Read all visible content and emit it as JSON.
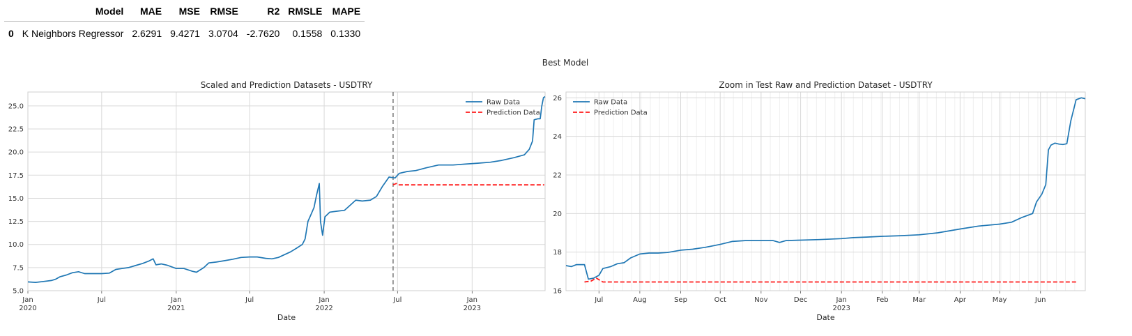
{
  "metrics_table": {
    "headers": [
      "",
      "Model",
      "MAE",
      "MSE",
      "RMSE",
      "R2",
      "RMSLE",
      "MAPE"
    ],
    "rows": [
      [
        "0",
        "K Neighbors Regressor",
        "2.6291",
        "9.4271",
        "3.0704",
        "-2.7620",
        "0.1558",
        "0.1330"
      ]
    ]
  },
  "suptitle": "Best Model",
  "chart_data": [
    {
      "type": "line",
      "title": "Scaled and Prediction Datasets - USDTRY",
      "xlabel": "Date",
      "ylabel": "",
      "xlim": [
        "2020-01-01",
        "2023-06-30"
      ],
      "ylim": [
        5.0,
        26.5
      ],
      "yticks": [
        5.0,
        7.5,
        10.0,
        12.5,
        15.0,
        17.5,
        20.0,
        22.5,
        25.0
      ],
      "ytick_labels": [
        "5.0",
        "7.5",
        "10.0",
        "12.5",
        "15.0",
        "17.5",
        "20.0",
        "22.5",
        "25.0"
      ],
      "xticks": [
        {
          "date": "2020-01-01",
          "label": "Jan",
          "sub": "2020"
        },
        {
          "date": "2020-07-01",
          "label": "Jul",
          "sub": ""
        },
        {
          "date": "2021-01-01",
          "label": "Jan",
          "sub": "2021"
        },
        {
          "date": "2021-07-01",
          "label": "Jul",
          "sub": ""
        },
        {
          "date": "2022-01-01",
          "label": "Jan",
          "sub": "2022"
        },
        {
          "date": "2022-07-01",
          "label": "Jul",
          "sub": ""
        },
        {
          "date": "2023-01-01",
          "label": "Jan",
          "sub": "2023"
        }
      ],
      "grid": true,
      "legend": "upper right",
      "split_line_date": "2022-06-20",
      "series": [
        {
          "name": "Raw Data",
          "color": "#1f77b4",
          "style": "solid",
          "points": [
            [
              "2020-01-01",
              5.95
            ],
            [
              "2020-01-20",
              5.9
            ],
            [
              "2020-02-10",
              6.0
            ],
            [
              "2020-02-28",
              6.1
            ],
            [
              "2020-03-10",
              6.25
            ],
            [
              "2020-03-20",
              6.5
            ],
            [
              "2020-04-05",
              6.7
            ],
            [
              "2020-04-20",
              6.95
            ],
            [
              "2020-05-05",
              7.05
            ],
            [
              "2020-05-20",
              6.85
            ],
            [
              "2020-06-05",
              6.85
            ],
            [
              "2020-07-01",
              6.85
            ],
            [
              "2020-07-20",
              6.9
            ],
            [
              "2020-08-05",
              7.3
            ],
            [
              "2020-08-20",
              7.4
            ],
            [
              "2020-09-05",
              7.5
            ],
            [
              "2020-09-25",
              7.75
            ],
            [
              "2020-10-10",
              7.95
            ],
            [
              "2020-10-25",
              8.2
            ],
            [
              "2020-11-05",
              8.45
            ],
            [
              "2020-11-12",
              7.8
            ],
            [
              "2020-11-25",
              7.9
            ],
            [
              "2020-12-10",
              7.75
            ],
            [
              "2021-01-01",
              7.4
            ],
            [
              "2021-01-20",
              7.4
            ],
            [
              "2021-02-10",
              7.1
            ],
            [
              "2021-02-20",
              7.0
            ],
            [
              "2021-03-10",
              7.5
            ],
            [
              "2021-03-22",
              8.0
            ],
            [
              "2021-04-10",
              8.1
            ],
            [
              "2021-05-01",
              8.25
            ],
            [
              "2021-05-20",
              8.4
            ],
            [
              "2021-06-10",
              8.6
            ],
            [
              "2021-07-01",
              8.65
            ],
            [
              "2021-07-20",
              8.65
            ],
            [
              "2021-08-10",
              8.5
            ],
            [
              "2021-08-25",
              8.45
            ],
            [
              "2021-09-10",
              8.6
            ],
            [
              "2021-09-25",
              8.9
            ],
            [
              "2021-10-10",
              9.2
            ],
            [
              "2021-10-25",
              9.6
            ],
            [
              "2021-11-08",
              10.0
            ],
            [
              "2021-11-15",
              10.6
            ],
            [
              "2021-11-22",
              12.5
            ],
            [
              "2021-11-30",
              13.3
            ],
            [
              "2021-12-07",
              14.0
            ],
            [
              "2021-12-13",
              15.3
            ],
            [
              "2021-12-20",
              16.6
            ],
            [
              "2021-12-23",
              12.5
            ],
            [
              "2021-12-28",
              11.0
            ],
            [
              "2022-01-03",
              13.0
            ],
            [
              "2022-01-15",
              13.5
            ],
            [
              "2022-02-01",
              13.6
            ],
            [
              "2022-02-20",
              13.7
            ],
            [
              "2022-03-05",
              14.2
            ],
            [
              "2022-03-20",
              14.8
            ],
            [
              "2022-04-05",
              14.7
            ],
            [
              "2022-04-25",
              14.8
            ],
            [
              "2022-05-10",
              15.2
            ],
            [
              "2022-05-25",
              16.3
            ],
            [
              "2022-06-10",
              17.3
            ],
            [
              "2022-06-25",
              17.2
            ],
            [
              "2022-07-05",
              17.7
            ],
            [
              "2022-07-25",
              17.9
            ],
            [
              "2022-08-15",
              18.0
            ],
            [
              "2022-09-10",
              18.3
            ],
            [
              "2022-10-10",
              18.6
            ],
            [
              "2022-11-15",
              18.6
            ],
            [
              "2022-12-15",
              18.7
            ],
            [
              "2023-01-15",
              18.8
            ],
            [
              "2023-02-15",
              18.9
            ],
            [
              "2023-03-15",
              19.1
            ],
            [
              "2023-04-15",
              19.4
            ],
            [
              "2023-05-10",
              19.7
            ],
            [
              "2023-05-22",
              20.3
            ],
            [
              "2023-05-30",
              21.2
            ],
            [
              "2023-06-03",
              23.5
            ],
            [
              "2023-06-12",
              23.6
            ],
            [
              "2023-06-18",
              23.6
            ],
            [
              "2023-06-22",
              25.0
            ],
            [
              "2023-06-26",
              25.9
            ],
            [
              "2023-06-30",
              26.0
            ]
          ]
        },
        {
          "name": "Prediction Data",
          "color": "#ff1a1a",
          "style": "dashed",
          "points": [
            [
              "2022-06-20",
              16.45
            ],
            [
              "2022-06-28",
              16.6
            ],
            [
              "2022-07-03",
              16.45
            ],
            [
              "2023-06-28",
              16.45
            ]
          ]
        }
      ]
    },
    {
      "type": "line",
      "title": "Zoom in Test Raw and Prediction Dataset - USDTRY",
      "xlabel": "Date",
      "ylabel": "",
      "xlim": [
        "2022-06-06",
        "2023-07-05"
      ],
      "ylim": [
        16.0,
        26.3
      ],
      "yticks": [
        16,
        18,
        20,
        22,
        24,
        26
      ],
      "ytick_labels": [
        "16",
        "18",
        "20",
        "22",
        "24",
        "26"
      ],
      "xticks": [
        {
          "date": "2022-07-01",
          "label": "Jul",
          "sub": ""
        },
        {
          "date": "2022-08-01",
          "label": "Aug",
          "sub": ""
        },
        {
          "date": "2022-09-01",
          "label": "Sep",
          "sub": ""
        },
        {
          "date": "2022-10-01",
          "label": "Oct",
          "sub": ""
        },
        {
          "date": "2022-11-01",
          "label": "Nov",
          "sub": ""
        },
        {
          "date": "2022-12-01",
          "label": "Dec",
          "sub": ""
        },
        {
          "date": "2023-01-01",
          "label": "Jan",
          "sub": "2023"
        },
        {
          "date": "2023-02-01",
          "label": "Feb",
          "sub": ""
        },
        {
          "date": "2023-03-01",
          "label": "Mar",
          "sub": ""
        },
        {
          "date": "2023-04-01",
          "label": "Apr",
          "sub": ""
        },
        {
          "date": "2023-05-01",
          "label": "May",
          "sub": ""
        },
        {
          "date": "2023-06-01",
          "label": "Jun",
          "sub": ""
        }
      ],
      "minor_xticks": [
        "2022-06-14",
        "2022-06-21",
        "2022-06-28",
        "2022-07-05",
        "2022-07-12",
        "2022-07-19",
        "2022-07-26",
        "2022-08-02",
        "2022-08-09",
        "2022-08-16",
        "2022-08-23",
        "2022-08-30",
        "2022-09-06",
        "2022-09-13",
        "2022-09-20",
        "2022-09-27",
        "2022-10-04",
        "2022-10-11",
        "2022-10-18",
        "2022-10-25",
        "2022-11-01",
        "2022-11-08",
        "2022-11-15",
        "2022-11-22",
        "2022-11-29",
        "2022-12-06",
        "2022-12-13",
        "2022-12-20",
        "2022-12-27",
        "2023-01-03",
        "2023-01-10",
        "2023-01-17",
        "2023-01-24",
        "2023-01-31",
        "2023-02-07",
        "2023-02-14",
        "2023-02-21",
        "2023-02-28",
        "2023-03-07",
        "2023-03-14",
        "2023-03-21",
        "2023-03-28",
        "2023-04-04",
        "2023-04-11",
        "2023-04-18",
        "2023-04-25",
        "2023-05-02",
        "2023-05-09",
        "2023-05-16",
        "2023-05-23",
        "2023-05-30",
        "2023-06-06",
        "2023-06-13",
        "2023-06-20",
        "2023-06-27"
      ],
      "grid": true,
      "legend": "upper left",
      "series": [
        {
          "name": "Raw Data",
          "color": "#1f77b4",
          "style": "solid",
          "points": [
            [
              "2022-06-06",
              17.3
            ],
            [
              "2022-06-10",
              17.25
            ],
            [
              "2022-06-14",
              17.35
            ],
            [
              "2022-06-20",
              17.35
            ],
            [
              "2022-06-23",
              16.6
            ],
            [
              "2022-06-27",
              16.65
            ],
            [
              "2022-07-01",
              16.8
            ],
            [
              "2022-07-04",
              17.15
            ],
            [
              "2022-07-10",
              17.25
            ],
            [
              "2022-07-15",
              17.4
            ],
            [
              "2022-07-20",
              17.45
            ],
            [
              "2022-07-25",
              17.7
            ],
            [
              "2022-08-01",
              17.9
            ],
            [
              "2022-08-08",
              17.95
            ],
            [
              "2022-08-15",
              17.95
            ],
            [
              "2022-08-22",
              17.98
            ],
            [
              "2022-09-01",
              18.1
            ],
            [
              "2022-09-10",
              18.15
            ],
            [
              "2022-09-20",
              18.25
            ],
            [
              "2022-10-01",
              18.4
            ],
            [
              "2022-10-10",
              18.55
            ],
            [
              "2022-10-20",
              18.6
            ],
            [
              "2022-11-01",
              18.6
            ],
            [
              "2022-11-10",
              18.6
            ],
            [
              "2022-11-15",
              18.5
            ],
            [
              "2022-11-20",
              18.6
            ],
            [
              "2022-12-01",
              18.62
            ],
            [
              "2022-12-15",
              18.65
            ],
            [
              "2023-01-01",
              18.7
            ],
            [
              "2023-01-10",
              18.75
            ],
            [
              "2023-01-20",
              18.78
            ],
            [
              "2023-02-01",
              18.82
            ],
            [
              "2023-02-15",
              18.85
            ],
            [
              "2023-03-01",
              18.9
            ],
            [
              "2023-03-15",
              19.0
            ],
            [
              "2023-04-01",
              19.2
            ],
            [
              "2023-04-15",
              19.35
            ],
            [
              "2023-05-01",
              19.45
            ],
            [
              "2023-05-10",
              19.55
            ],
            [
              "2023-05-18",
              19.8
            ],
            [
              "2023-05-26",
              20.0
            ],
            [
              "2023-05-29",
              20.6
            ],
            [
              "2023-06-02",
              21.0
            ],
            [
              "2023-06-05",
              21.5
            ],
            [
              "2023-06-07",
              23.3
            ],
            [
              "2023-06-09",
              23.55
            ],
            [
              "2023-06-12",
              23.65
            ],
            [
              "2023-06-15",
              23.6
            ],
            [
              "2023-06-18",
              23.58
            ],
            [
              "2023-06-21",
              23.62
            ],
            [
              "2023-06-24",
              24.8
            ],
            [
              "2023-06-28",
              25.9
            ],
            [
              "2023-07-02",
              26.0
            ],
            [
              "2023-07-05",
              25.95
            ]
          ]
        },
        {
          "name": "Prediction Data",
          "color": "#ff1a1a",
          "style": "dashed",
          "points": [
            [
              "2022-06-20",
              16.45
            ],
            [
              "2022-06-25",
              16.5
            ],
            [
              "2022-06-29",
              16.65
            ],
            [
              "2022-07-04",
              16.45
            ],
            [
              "2023-06-28",
              16.45
            ]
          ]
        }
      ]
    }
  ]
}
